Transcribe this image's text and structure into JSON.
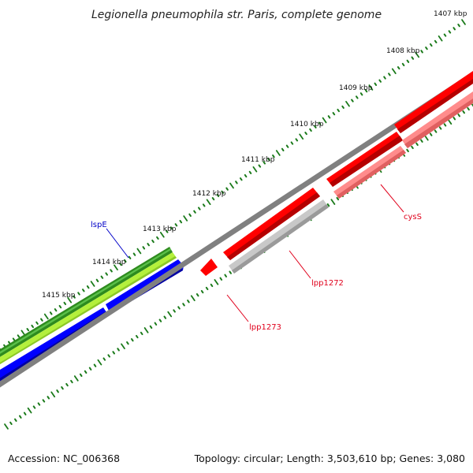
{
  "title": "Legionella pneumophila str. Paris, complete genome",
  "footer": {
    "accession": "Accession: NC_006368",
    "summary": "Topology: circular; Length: 3,503,610 bp; Genes: 3,080"
  },
  "scale_labels": [
    "1407 kbp",
    "1408 kbp",
    "1409 kbp",
    "1410 kbp",
    "1411 kbp",
    "1412 kbp",
    "1413 kbp",
    "1414 kbp",
    "1415 kbp"
  ],
  "gene_labels": [
    {
      "text": "cysS",
      "color": "#e0001b"
    },
    {
      "text": "lpp1272",
      "color": "#e0001b"
    },
    {
      "text": "lpp1273",
      "color": "#e0001b"
    },
    {
      "text": "lspE",
      "color": "#0000c8"
    }
  ],
  "colors": {
    "backbone": "#808080",
    "tick": "#1a7a1a",
    "forward_cds": "#ff0000",
    "forward_cds_light": "#ff8c8c",
    "reverse_cds": "#0000ff",
    "gene_green": "#2e8b1e",
    "gene_lime": "#b4f03c",
    "gene_gray": "#c8c8c8"
  }
}
